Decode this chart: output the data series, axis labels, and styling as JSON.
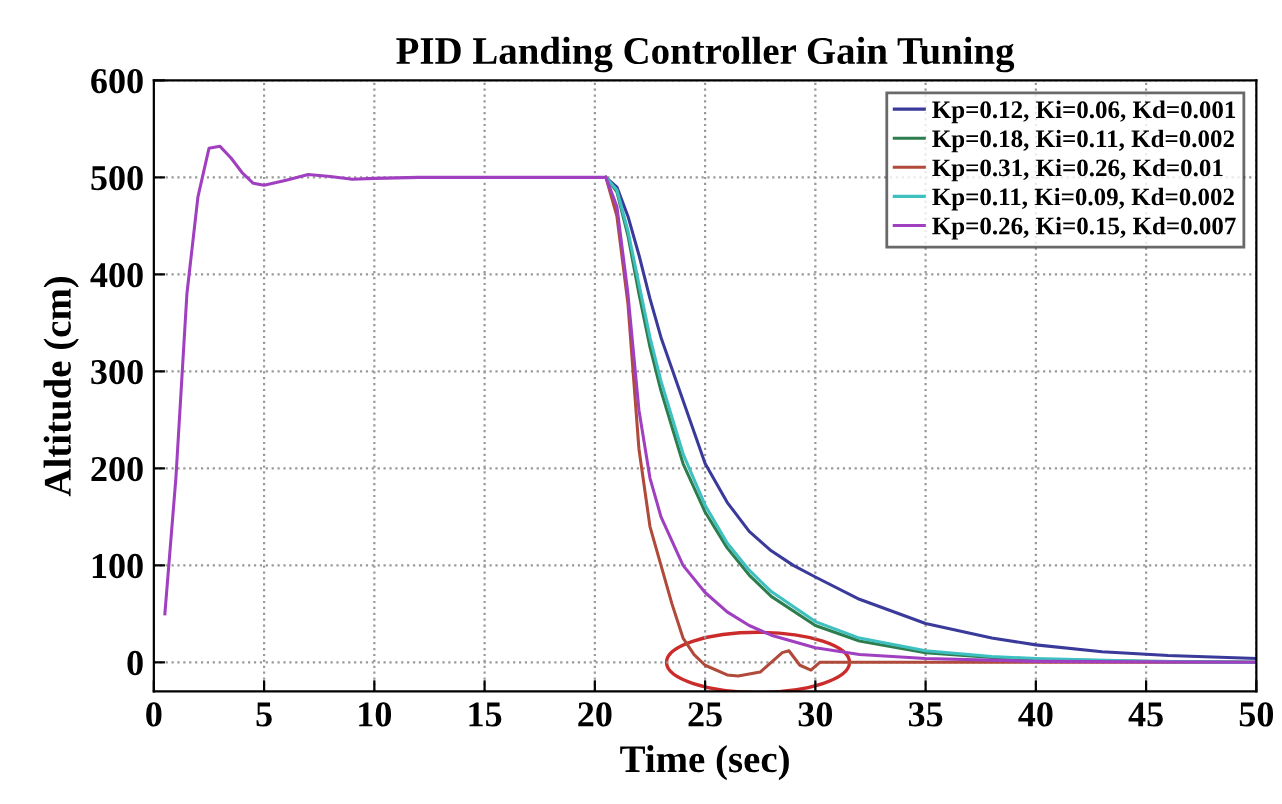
{
  "chart_data": {
    "type": "line",
    "title": "PID Landing Controller Gain Tuning",
    "xlabel": "Time (sec)",
    "ylabel": "Altitude (cm)",
    "xlim": [
      0,
      50
    ],
    "ylim": [
      -30,
      600
    ],
    "xticks": [
      0,
      5,
      10,
      15,
      20,
      25,
      30,
      35,
      40,
      45,
      50
    ],
    "yticks": [
      0,
      100,
      200,
      300,
      400,
      500,
      600
    ],
    "grid": true,
    "legend": "top right",
    "line_style": "solid",
    "marker": "none",
    "series": [
      {
        "name": "Kp=0.12, Ki=0.06, Kd=0.001",
        "color": "#3a3a9a",
        "x": [
          20.5,
          21,
          21.5,
          22,
          22.5,
          23,
          24,
          25,
          26,
          27,
          28,
          29,
          30,
          32,
          35,
          38,
          40,
          43,
          46,
          50
        ],
        "values": [
          500,
          490,
          460,
          420,
          375,
          335,
          270,
          205,
          165,
          135,
          115,
          100,
          88,
          65,
          40,
          25,
          18,
          11,
          7,
          4
        ]
      },
      {
        "name": "Kp=0.18, Ki=0.11, Kd=0.002",
        "color": "#2e7d4f",
        "x": [
          20.5,
          21,
          21.5,
          22,
          22.5,
          23,
          24,
          25,
          26,
          27,
          28,
          30,
          32,
          35,
          38,
          40,
          45,
          50
        ],
        "values": [
          500,
          485,
          440,
          380,
          325,
          280,
          205,
          155,
          118,
          90,
          68,
          38,
          22,
          10,
          5,
          3,
          1,
          0
        ]
      },
      {
        "name": "Kp=0.31, Ki=0.26, Kd=0.01",
        "color": "#b04a3a",
        "x": [
          20.5,
          21,
          21.5,
          22,
          22.5,
          23,
          23.5,
          24,
          24.5,
          25,
          26,
          26.5,
          27.5,
          28.5,
          28.8,
          29.3,
          29.8,
          30.2,
          35,
          50
        ],
        "values": [
          500,
          460,
          370,
          220,
          140,
          100,
          60,
          25,
          8,
          -3,
          -13,
          -14,
          -10,
          10,
          12,
          -3,
          -8,
          0,
          0,
          0
        ]
      },
      {
        "name": "Kp=0.11, Ki=0.09, Kd=0.002",
        "color": "#3fc0c0",
        "x": [
          20.5,
          21,
          21.5,
          22,
          22.5,
          23,
          24,
          25,
          26,
          27,
          28,
          30,
          32,
          35,
          38,
          40,
          45,
          50
        ],
        "values": [
          500,
          487,
          445,
          390,
          335,
          290,
          215,
          162,
          123,
          95,
          73,
          42,
          25,
          12,
          6,
          4,
          1,
          0
        ]
      },
      {
        "name": "Kp=0.26, Ki=0.15, Kd=0.007",
        "color": "#a040c0",
        "x": [
          0.5,
          1,
          1.5,
          2,
          2.5,
          3,
          3.5,
          4,
          4.5,
          5,
          6,
          7,
          8,
          9,
          10,
          12,
          20.5,
          21,
          21.5,
          22,
          22.5,
          23,
          24,
          25,
          26,
          27,
          28,
          30,
          32,
          35,
          40,
          50
        ],
        "values": [
          50,
          190,
          380,
          480,
          530,
          532,
          520,
          505,
          494,
          492,
          497,
          503,
          501,
          498,
          499,
          500,
          500,
          470,
          380,
          260,
          190,
          150,
          100,
          72,
          52,
          38,
          28,
          15,
          8,
          4,
          1,
          0
        ]
      }
    ]
  }
}
